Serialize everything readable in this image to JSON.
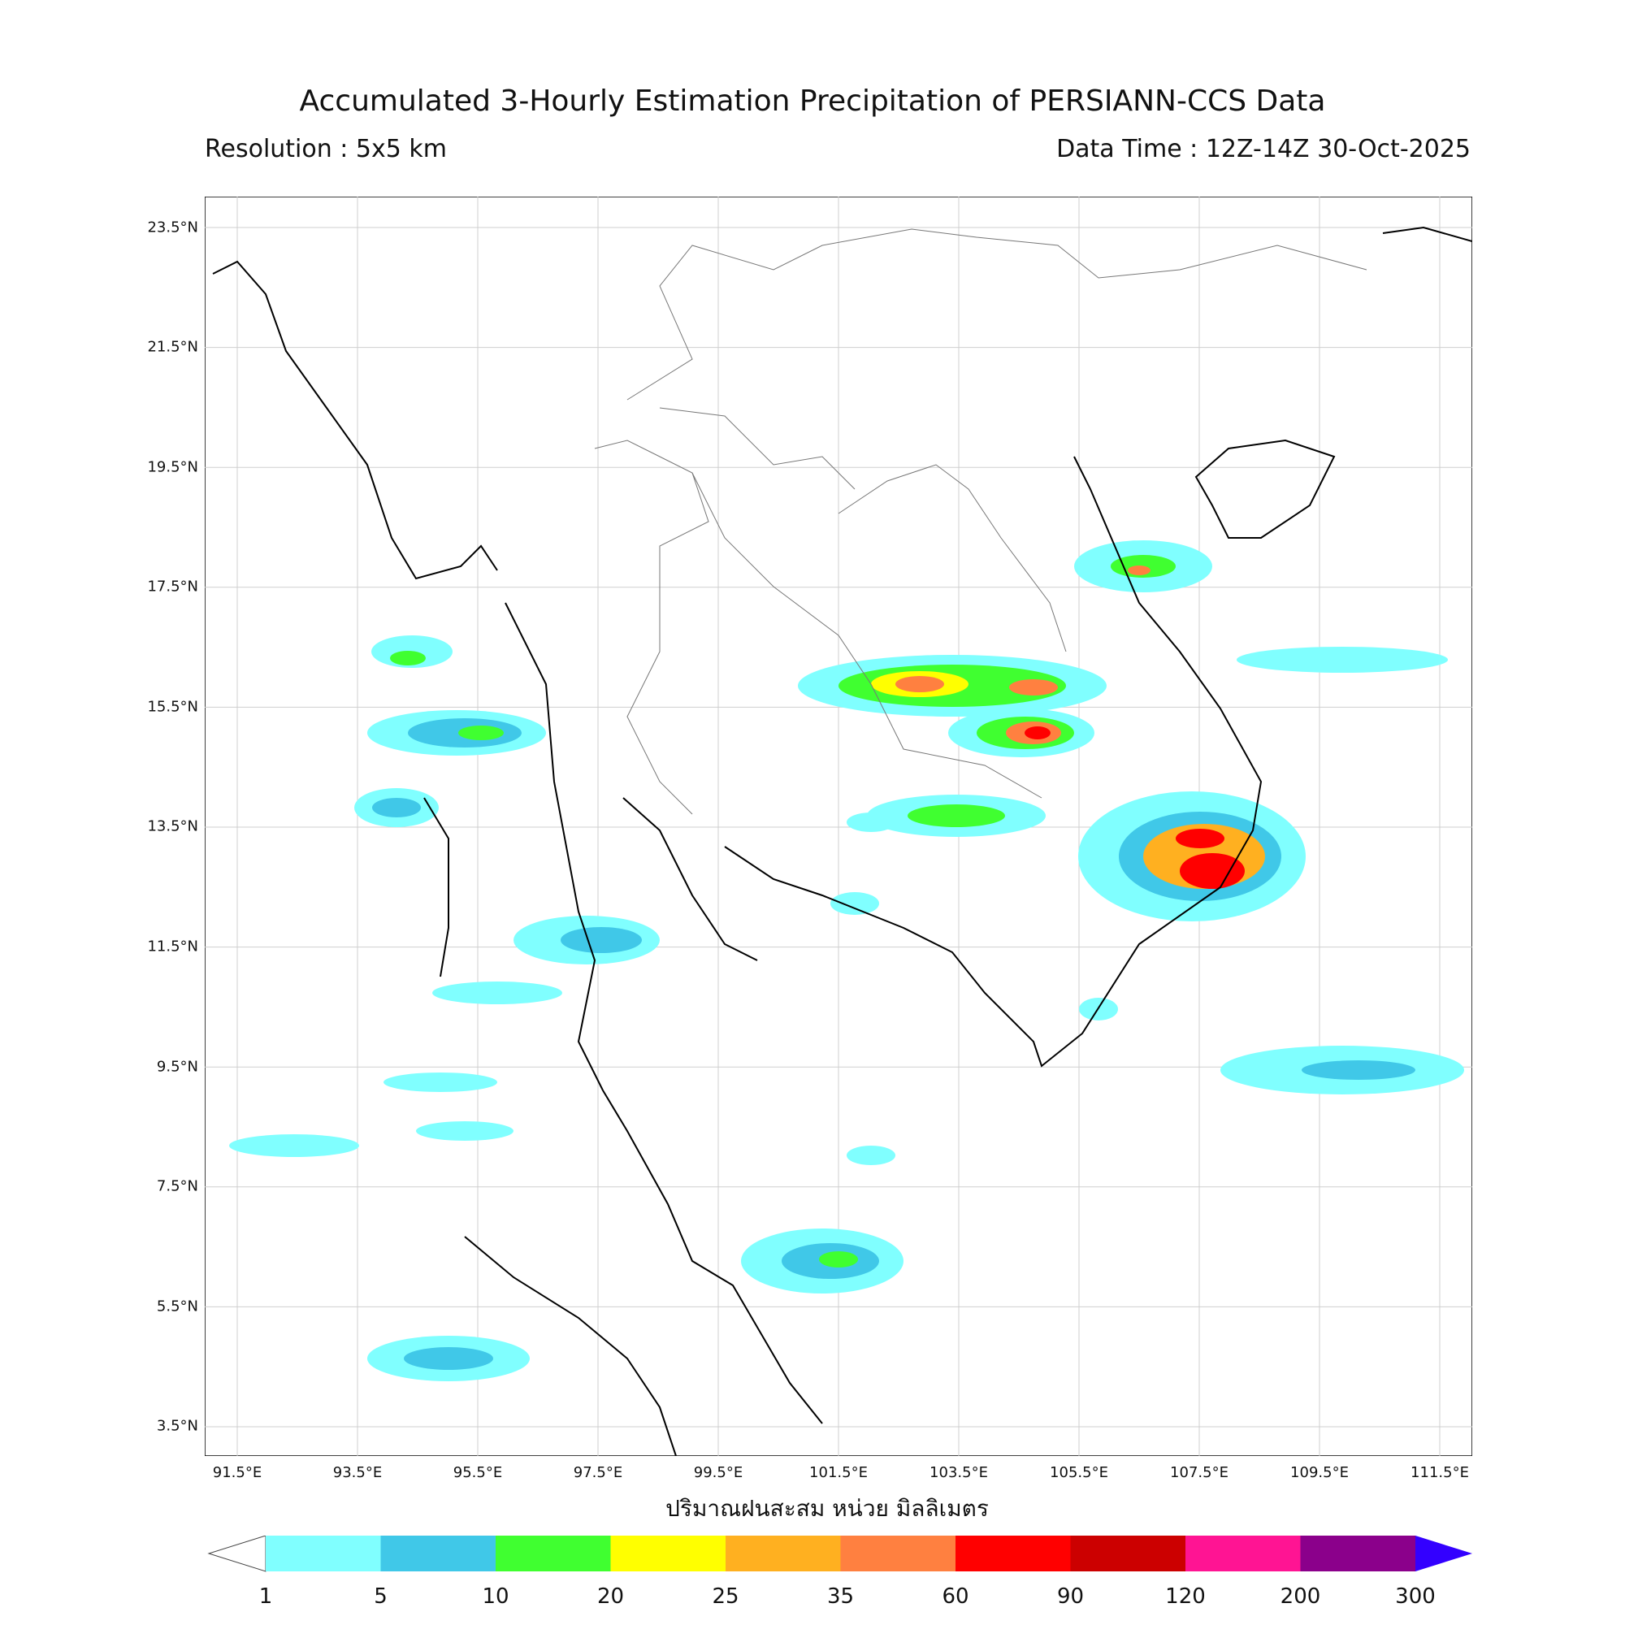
{
  "header": {
    "title": "Accumulated 3-Hourly Estimation Precipitation of PERSIANN-CCS Data",
    "resolution": "Resolution : 5x5 km",
    "data_time": "Data Time : 12Z-14Z 30-Oct-2025"
  },
  "axes": {
    "lat_ticks": [
      "23.5°N",
      "21.5°N",
      "19.5°N",
      "17.5°N",
      "15.5°N",
      "13.5°N",
      "11.5°N",
      "9.5°N",
      "7.5°N",
      "5.5°N",
      "3.5°N"
    ],
    "lon_ticks": [
      "91.5°E",
      "93.5°E",
      "95.5°E",
      "97.5°E",
      "99.5°E",
      "101.5°E",
      "103.5°E",
      "105.5°E",
      "107.5°E",
      "109.5°E",
      "111.5°E"
    ],
    "unit_label": "ปริมาณฝนสะสม หน่วย มิลลิเมตร"
  },
  "colorbar": {
    "boundaries": [
      "1",
      "5",
      "10",
      "20",
      "25",
      "35",
      "60",
      "90",
      "120",
      "200",
      "300"
    ],
    "colors": [
      "#80ffff",
      "#40c8e8",
      "#40ff30",
      "#ffff00",
      "#ffb020",
      "#ff8040",
      "#ff0000",
      "#cc0000",
      "#ff1493",
      "#8b008b",
      "#3300ff"
    ],
    "under_color": "#ffffff",
    "over_color": "#3300ff"
  }
}
